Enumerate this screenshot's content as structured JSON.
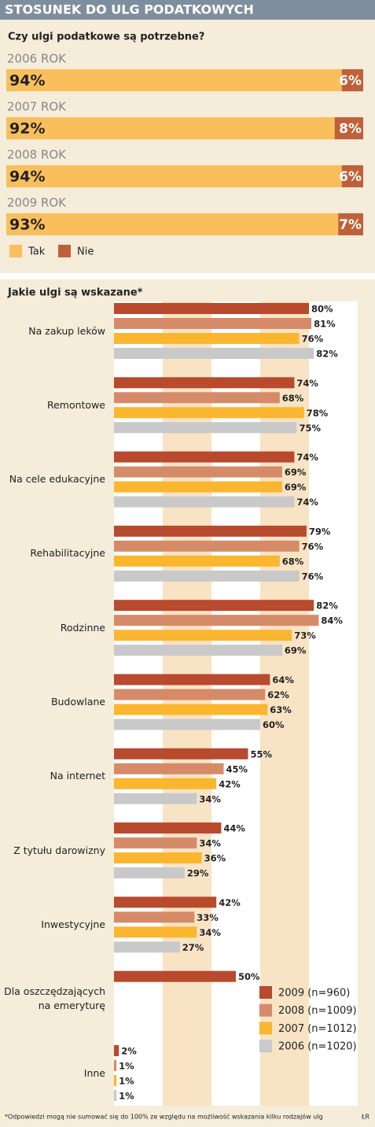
{
  "header": {
    "title": "STOSUNEK DO ULG PODATKOWYCH"
  },
  "chart_data": [
    {
      "type": "bar",
      "horizontal": true,
      "stacked": true,
      "title": "Czy ulgi podatkowe są potrzebne?",
      "categories": [
        "2006 ROK",
        "2007 ROK",
        "2008 ROK",
        "2009 ROK"
      ],
      "xlim": [
        0,
        100
      ],
      "series": [
        {
          "name": "Tak",
          "color": "#f8bf5c",
          "values": [
            94,
            92,
            94,
            93
          ],
          "value_labels": [
            "94%",
            "92%",
            "94%",
            "93%"
          ]
        },
        {
          "name": "Nie",
          "color": "#c0603a",
          "values": [
            6,
            8,
            6,
            7
          ],
          "value_labels": [
            "6%",
            "8%",
            "6%",
            "7%"
          ]
        }
      ]
    },
    {
      "type": "bar",
      "horizontal": true,
      "stacked": false,
      "title": "Jakie ulgi są wskazane*",
      "categories": [
        "Na zakup leków",
        "Remontowe",
        "Na cele edukacyjne",
        "Rehabilitacyjne",
        "Rodzinne",
        "Budowlane",
        "Na internet",
        "Z tytułu darowizny",
        "Inwestycyjne",
        "Dla oszczędzających\nna emeryturę",
        "Inne"
      ],
      "xlim": [
        0,
        100
      ],
      "series": [
        {
          "name": "2009 (n=960)",
          "color": "#b84a2d",
          "values": [
            80,
            74,
            74,
            79,
            82,
            64,
            55,
            44,
            42,
            50,
            2
          ],
          "value_labels": [
            "80%",
            "74%",
            "74%",
            "79%",
            "82%",
            "64%",
            "55%",
            "44%",
            "42%",
            "50%",
            "2%"
          ]
        },
        {
          "name": "2008 (n=1009)",
          "color": "#d68b68",
          "values": [
            81,
            68,
            69,
            76,
            84,
            62,
            45,
            34,
            33,
            null,
            1
          ],
          "value_labels": [
            "81%",
            "68%",
            "69%",
            "76%",
            "84%",
            "62%",
            "45%",
            "34%",
            "33%",
            null,
            "1%"
          ]
        },
        {
          "name": "2007 (n=1012)",
          "color": "#fbb630",
          "values": [
            76,
            78,
            69,
            68,
            73,
            63,
            42,
            36,
            34,
            null,
            1
          ],
          "value_labels": [
            "76%",
            "78%",
            "69%",
            "68%",
            "73%",
            "63%",
            "42%",
            "36%",
            "34%",
            null,
            "1%"
          ]
        },
        {
          "name": "2006 (n=1020)",
          "color": "#c9c9c9",
          "values": [
            82,
            75,
            74,
            76,
            69,
            60,
            34,
            29,
            27,
            null,
            1
          ],
          "value_labels": [
            "82%",
            "75%",
            "74%",
            "76%",
            "69%",
            "60%",
            "34%",
            "29%",
            "27%",
            null,
            "1%"
          ]
        }
      ]
    }
  ],
  "footnote": "*Odpowiedzi mogą nie sumować się do 100% ze względu na możliwość wskazania kilku rodzajów ulg",
  "credit": "ŁR"
}
